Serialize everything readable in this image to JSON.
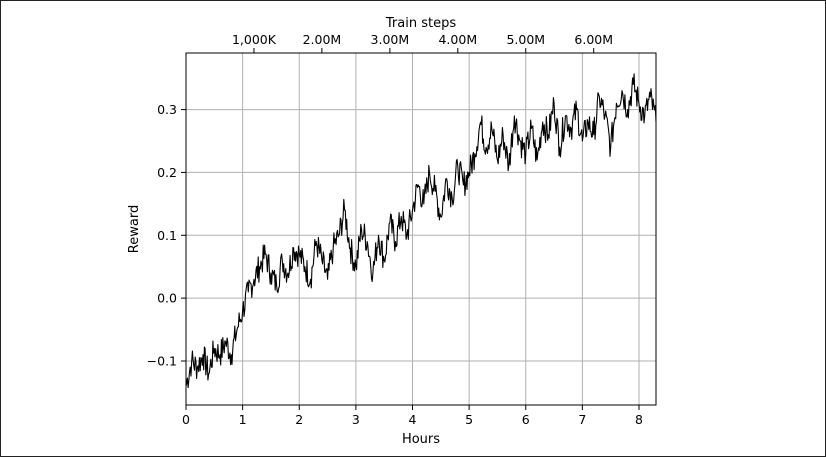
{
  "chart_data": {
    "type": "line",
    "xlabel": "Hours",
    "ylabel": "Reward",
    "top_xlabel": "Train steps",
    "xlim": [
      0,
      8.3
    ],
    "ylim": [
      -0.17,
      0.39
    ],
    "x_ticks": [
      0,
      1,
      2,
      3,
      4,
      5,
      6,
      7,
      8
    ],
    "x_tick_labels": [
      "0",
      "1",
      "2",
      "3",
      "4",
      "5",
      "6",
      "7",
      "8"
    ],
    "y_ticks": [
      -0.1,
      0.0,
      0.1,
      0.2,
      0.3
    ],
    "y_tick_labels": [
      "−0.1",
      "0.0",
      "0.1",
      "0.2",
      "0.3"
    ],
    "top_x_ticks_hours": [
      1.2,
      2.4,
      3.6,
      4.8,
      6.0,
      7.2
    ],
    "top_x_tick_labels": [
      "1,000K",
      "2.00M",
      "3.00M",
      "4.00M",
      "5.00M",
      "6.00M"
    ],
    "grid": true,
    "series": [
      {
        "color": "#000000",
        "x": [
          0.0,
          0.1,
          0.2,
          0.3,
          0.4,
          0.5,
          0.6,
          0.7,
          0.8,
          0.9,
          1.0,
          1.1,
          1.2,
          1.3,
          1.4,
          1.5,
          1.6,
          1.7,
          1.8,
          1.9,
          2.0,
          2.1,
          2.2,
          2.3,
          2.4,
          2.5,
          2.6,
          2.7,
          2.8,
          2.9,
          3.0,
          3.1,
          3.2,
          3.3,
          3.4,
          3.5,
          3.6,
          3.7,
          3.8,
          3.9,
          4.0,
          4.1,
          4.2,
          4.3,
          4.4,
          4.5,
          4.6,
          4.7,
          4.8,
          4.9,
          5.0,
          5.1,
          5.2,
          5.3,
          5.4,
          5.5,
          5.6,
          5.7,
          5.8,
          5.9,
          6.0,
          6.1,
          6.2,
          6.3,
          6.4,
          6.5,
          6.6,
          6.7,
          6.8,
          6.9,
          7.0,
          7.1,
          7.2,
          7.3,
          7.4,
          7.5,
          7.6,
          7.7,
          7.8,
          7.9,
          8.0,
          8.1,
          8.2,
          8.3
        ],
        "y": [
          -0.14,
          -0.1,
          -0.11,
          -0.09,
          -0.12,
          -0.08,
          -0.09,
          -0.07,
          -0.09,
          -0.05,
          -0.02,
          0.01,
          0.03,
          0.05,
          0.07,
          0.04,
          0.02,
          0.06,
          0.04,
          0.08,
          0.07,
          0.05,
          0.03,
          0.09,
          0.06,
          0.03,
          0.08,
          0.1,
          0.14,
          0.08,
          0.05,
          0.11,
          0.09,
          0.04,
          0.1,
          0.06,
          0.12,
          0.09,
          0.13,
          0.1,
          0.14,
          0.18,
          0.15,
          0.2,
          0.17,
          0.13,
          0.19,
          0.16,
          0.21,
          0.18,
          0.2,
          0.23,
          0.28,
          0.24,
          0.27,
          0.22,
          0.26,
          0.21,
          0.29,
          0.25,
          0.23,
          0.27,
          0.22,
          0.28,
          0.26,
          0.31,
          0.24,
          0.29,
          0.27,
          0.3,
          0.25,
          0.28,
          0.26,
          0.32,
          0.29,
          0.24,
          0.31,
          0.33,
          0.3,
          0.34,
          0.31,
          0.29,
          0.32,
          0.28
        ]
      }
    ]
  }
}
